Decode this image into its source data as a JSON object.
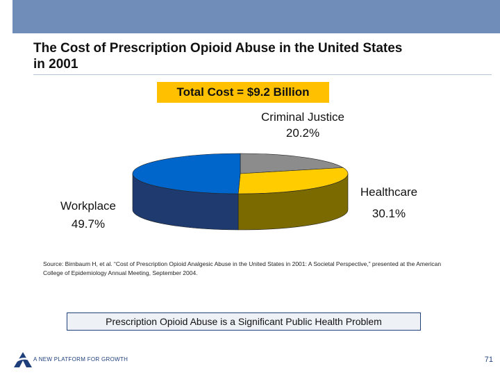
{
  "slide": {
    "title_line1": "The Cost of Prescription Opioid Abuse in the United States",
    "title_line2": "in 2001",
    "total_cost": "Total Cost = $9.2 Billion",
    "source_line1": "Source: Birnbaum H, et al. “Cost of Prescription Opioid Analgesic Abuse in the United States in 2001: A Societal Perspective,” presented at the American",
    "source_line2": "College of Epidemiology Annual Meeting, September 2004.",
    "conclusion": "Prescription Opioid Abuse is a Significant Public Health Problem",
    "tagline": "A NEW PLATFORM FOR GROWTH",
    "page_number": "71"
  },
  "chart_data": {
    "type": "pie",
    "title": "Total Cost = $9.2 Billion",
    "slices": [
      {
        "label": "Criminal Justice",
        "value": 20.2,
        "display": "20.2%",
        "color": "#8c8c8c",
        "side_color": "#5a5a5a"
      },
      {
        "label": "Healthcare",
        "value": 30.1,
        "display": "30.1%",
        "color": "#ffcc00",
        "side_color": "#7a6a00"
      },
      {
        "label": "Workplace",
        "value": 49.7,
        "display": "49.7%",
        "color": "#0066cc",
        "side_color": "#1e3a6e"
      }
    ]
  },
  "colors": {
    "header_bar": "#6f8db8",
    "total_box": "#ffc000",
    "navy": "#1e3f7a"
  }
}
